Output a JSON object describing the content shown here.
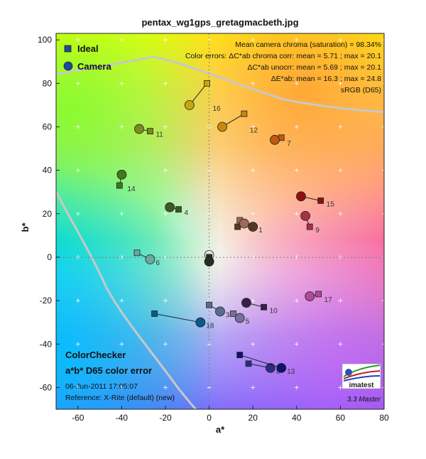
{
  "title": "pentax_wg1gps_gretagmacbeth.jpg",
  "chart_data": {
    "type": "scatter",
    "xlabel": "a*",
    "ylabel": "b*",
    "xlim": [
      -70,
      80
    ],
    "ylim": [
      -70,
      103
    ],
    "x_ticks": [
      -60,
      -40,
      -20,
      0,
      20,
      40,
      60,
      80
    ],
    "y_ticks": [
      -60,
      -40,
      -20,
      0,
      20,
      40,
      60,
      80,
      100
    ],
    "grid": true,
    "legend": {
      "placement": "top-left",
      "entries": [
        {
          "name": "Ideal",
          "marker": "square",
          "color": "#1a4a9e"
        },
        {
          "name": "Camera",
          "marker": "circle",
          "color": "#1a4a9e"
        }
      ]
    },
    "series": [
      {
        "name": "Ideal",
        "marker": "square"
      },
      {
        "name": "Camera",
        "marker": "circle"
      }
    ],
    "patches": [
      {
        "label": "1",
        "ideal": [
          13,
          14
        ],
        "camera": [
          20,
          14
        ],
        "color": "#5a3826"
      },
      {
        "label": "2",
        "ideal": [
          14,
          17
        ],
        "camera": [
          16,
          15.5
        ],
        "color": "#9c6a5c"
      },
      {
        "label": "3",
        "ideal": [
          0,
          -22
        ],
        "camera": [
          5,
          -25
        ],
        "color": "#5a6c8e"
      },
      {
        "label": "4",
        "ideal": [
          -14,
          22
        ],
        "camera": [
          -18,
          23
        ],
        "color": "#3d5a1f"
      },
      {
        "label": "5",
        "ideal": [
          11,
          -26
        ],
        "camera": [
          14,
          -28
        ],
        "color": "#77709e"
      },
      {
        "label": "6",
        "ideal": [
          -33,
          2
        ],
        "camera": [
          -27,
          -1
        ],
        "color": "#6aa8a0"
      },
      {
        "label": "7",
        "ideal": [
          33,
          55
        ],
        "camera": [
          30,
          54
        ],
        "color": "#c05a0e"
      },
      {
        "label": "8",
        "ideal": [
          18,
          -49
        ],
        "camera": [
          28,
          -51
        ],
        "color": "#2c2c86"
      },
      {
        "label": "9",
        "ideal": [
          46,
          14
        ],
        "camera": [
          44,
          19
        ],
        "color": "#a83048"
      },
      {
        "label": "10",
        "ideal": [
          25,
          -23
        ],
        "camera": [
          17,
          -21
        ],
        "color": "#3a1e4c"
      },
      {
        "label": "11",
        "ideal": [
          -27,
          58
        ],
        "camera": [
          -32,
          59
        ],
        "color": "#7c8c1c"
      },
      {
        "label": "12",
        "ideal": [
          16,
          66
        ],
        "camera": [
          6,
          60
        ],
        "color": "#c8880e"
      },
      {
        "label": "13",
        "ideal": [
          14,
          -45
        ],
        "camera": [
          33,
          -51
        ],
        "color": "#10106e"
      },
      {
        "label": "14",
        "ideal": [
          -41,
          33
        ],
        "camera": [
          -40,
          38
        ],
        "color": "#3c7a1a"
      },
      {
        "label": "15",
        "ideal": [
          51,
          26
        ],
        "camera": [
          42,
          28
        ],
        "color": "#8c1010"
      },
      {
        "label": "16",
        "ideal": [
          -1,
          80
        ],
        "camera": [
          -9,
          70
        ],
        "color": "#c4a80c"
      },
      {
        "label": "17",
        "ideal": [
          50,
          -17
        ],
        "camera": [
          46,
          -18
        ],
        "color": "#b04a98"
      },
      {
        "label": "18",
        "ideal": [
          -25,
          -26
        ],
        "camera": [
          -4,
          -30
        ],
        "color": "#0a5a8c"
      },
      {
        "label": "",
        "ideal": [
          0,
          0
        ],
        "camera": [
          0,
          1
        ],
        "color": "#e4e4e4"
      },
      {
        "label": "",
        "ideal": [
          0,
          0
        ],
        "camera": [
          0,
          -2
        ],
        "color": "#2a2a2a"
      }
    ]
  },
  "info_lines": [
    "Mean camera chroma (saturation) = 98.34%",
    "Color errors: ΔC*ab chroma corr:  mean = 5.71 ;  max = 20.1",
    "ΔC*ab unocrr:  mean = 5.69 ;  max = 20.1",
    "ΔE*ab:  mean = 16.3 ;  max = 24.8",
    "sRGB (D65)"
  ],
  "bottom_left": {
    "line1": "ColorChecker",
    "line2": "a*b* D65 color error",
    "line3": "06-Jun-2011 17:05:07",
    "line4": "Reference: X-Rite (default) (new)"
  },
  "logo_text": "imatest",
  "version_text": "3.3  Master"
}
